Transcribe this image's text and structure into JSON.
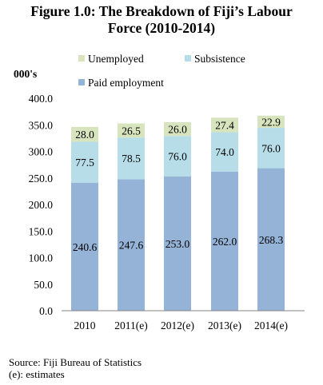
{
  "chart_data": {
    "type": "bar",
    "stacked": true,
    "title": [
      "Figure 1.0: The Breakdown of Fiji’s Labour",
      "Force (2010-2014)"
    ],
    "ylabel": "000's",
    "ylim": [
      0,
      400
    ],
    "yticks": [
      "0.0",
      "50.0",
      "100.0",
      "150.0",
      "200.0",
      "250.0",
      "300.0",
      "350.0",
      "400.0"
    ],
    "categories": [
      "2010",
      "2011(e)",
      "2012(e)",
      "2013(e)",
      "2014(e)"
    ],
    "series": [
      {
        "name": "Paid employment",
        "color": "#95b3d7",
        "values": [
          240.6,
          247.6,
          253.0,
          262.0,
          268.3
        ],
        "labels": [
          "240.6",
          "247.6",
          "253.0",
          "262.0",
          "268.3"
        ]
      },
      {
        "name": "Subsistence",
        "color": "#b7dee8",
        "values": [
          77.5,
          78.5,
          76.0,
          74.0,
          76.0
        ],
        "labels": [
          "77.5",
          "78.5",
          "76.0",
          "74.0",
          "76.0"
        ]
      },
      {
        "name": "Unemployed",
        "color": "#d7e4bd",
        "values": [
          28.0,
          26.5,
          26.0,
          27.4,
          22.9
        ],
        "labels": [
          "28.0",
          "26.5",
          "26.0",
          "27.4",
          "22.9"
        ]
      }
    ],
    "legend_placement": "top",
    "grid": false
  },
  "source": {
    "line1": "Source: Fiji Bureau of Statistics",
    "line2": "(e): estimates"
  }
}
